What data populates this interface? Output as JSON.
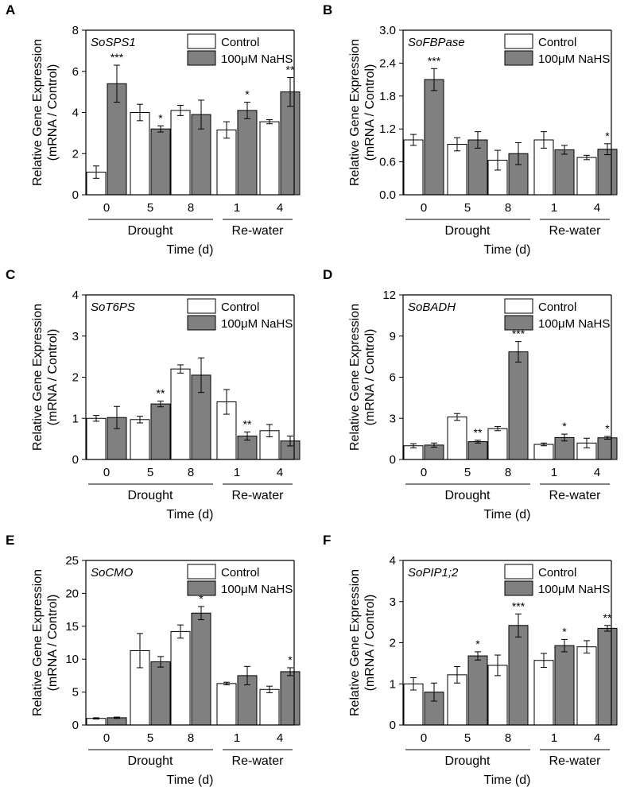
{
  "colors": {
    "control": "#ffffff",
    "nahs": "#808080",
    "axis": "#000000"
  },
  "chart_data": [
    {
      "panel": "A",
      "type": "bar",
      "gene": "SoSPS1",
      "ylabel_line1": "Relative Gene Expression",
      "ylabel_line2": "(mRNA / Control)",
      "xlabel": "Time (d)",
      "categories": [
        "0",
        "5",
        "8",
        "1",
        "4"
      ],
      "groups": [
        "Drought",
        "Re-water"
      ],
      "ylim": [
        0,
        8
      ],
      "yticks": [
        "0",
        "2",
        "4",
        "6",
        "8"
      ],
      "legend": [
        "Control",
        "100μM NaHS"
      ],
      "series": [
        {
          "name": "Control",
          "values": [
            1.1,
            4.0,
            4.1,
            3.15,
            3.55
          ],
          "errors": [
            0.3,
            0.4,
            0.25,
            0.4,
            0.1
          ]
        },
        {
          "name": "100μM NaHS",
          "values": [
            5.4,
            3.2,
            3.9,
            4.1,
            5.0
          ],
          "errors": [
            0.9,
            0.15,
            0.7,
            0.4,
            0.7
          ]
        }
      ],
      "significance": [
        "***",
        "*",
        "",
        "*",
        "**"
      ]
    },
    {
      "panel": "B",
      "type": "bar",
      "gene": "SoFBPase",
      "ylabel_line1": "Relative Gene Expression",
      "ylabel_line2": "(mRNA / Control)",
      "xlabel": "Time (d)",
      "categories": [
        "0",
        "5",
        "8",
        "1",
        "4"
      ],
      "groups": [
        "Drought",
        "Re-water"
      ],
      "ylim": [
        0,
        3
      ],
      "yticks": [
        "0.0",
        "0.6",
        "1.2",
        "1.8",
        "2.4",
        "3.0"
      ],
      "legend": [
        "Control",
        "100μM NaHS"
      ],
      "series": [
        {
          "name": "Control",
          "values": [
            1.0,
            0.92,
            0.63,
            1.0,
            0.68
          ],
          "errors": [
            0.1,
            0.12,
            0.18,
            0.15,
            0.04
          ]
        },
        {
          "name": "100μM NaHS",
          "values": [
            2.1,
            1.0,
            0.75,
            0.82,
            0.83
          ],
          "errors": [
            0.2,
            0.15,
            0.2,
            0.08,
            0.1
          ]
        }
      ],
      "significance": [
        "***",
        "",
        "",
        "",
        "*"
      ]
    },
    {
      "panel": "C",
      "type": "bar",
      "gene": "SoT6PS",
      "ylabel_line1": "Relative Gene Expression",
      "ylabel_line2": "(mRNA / Control)",
      "xlabel": "Time (d)",
      "categories": [
        "0",
        "5",
        "8",
        "1",
        "4"
      ],
      "groups": [
        "Drought",
        "Re-water"
      ],
      "ylim": [
        0,
        4
      ],
      "yticks": [
        "0",
        "1",
        "2",
        "3",
        "4"
      ],
      "legend": [
        "Control",
        "100μM NaHS"
      ],
      "series": [
        {
          "name": "Control",
          "values": [
            1.0,
            0.97,
            2.2,
            1.4,
            0.7
          ],
          "errors": [
            0.07,
            0.08,
            0.1,
            0.3,
            0.15
          ]
        },
        {
          "name": "100μM NaHS",
          "values": [
            1.02,
            1.35,
            2.05,
            0.57,
            0.45
          ],
          "errors": [
            0.27,
            0.07,
            0.42,
            0.1,
            0.12
          ]
        }
      ],
      "significance": [
        "",
        "**",
        "",
        "**",
        ""
      ]
    },
    {
      "panel": "D",
      "type": "bar",
      "gene": "SoBADH",
      "ylabel_line1": "Relative Gene Expression",
      "ylabel_line2": "(mRNA / Control)",
      "xlabel": "Time (d)",
      "categories": [
        "0",
        "5",
        "8",
        "1",
        "4"
      ],
      "groups": [
        "Drought",
        "Re-water"
      ],
      "ylim": [
        0,
        12
      ],
      "yticks": [
        "0",
        "3",
        "6",
        "9",
        "12"
      ],
      "legend": [
        "Control",
        "100μM NaHS"
      ],
      "series": [
        {
          "name": "Control",
          "values": [
            1.0,
            3.1,
            2.25,
            1.1,
            1.2
          ],
          "errors": [
            0.15,
            0.25,
            0.15,
            0.1,
            0.35
          ]
        },
        {
          "name": "100μM NaHS",
          "values": [
            1.05,
            1.3,
            7.85,
            1.6,
            1.58
          ],
          "errors": [
            0.15,
            0.1,
            0.75,
            0.25,
            0.1
          ]
        }
      ],
      "significance": [
        "",
        "**",
        "***",
        "*",
        "*"
      ]
    },
    {
      "panel": "E",
      "type": "bar",
      "gene": "SoCMO",
      "ylabel_line1": "Relative Gene Expression",
      "ylabel_line2": "(mRNA / Control)",
      "xlabel": "Time (d)",
      "categories": [
        "0",
        "5",
        "8",
        "1",
        "4"
      ],
      "groups": [
        "Drought",
        "Re-water"
      ],
      "ylim": [
        0,
        25
      ],
      "yticks": [
        "0",
        "5",
        "10",
        "15",
        "20",
        "25"
      ],
      "legend": [
        "Control",
        "100μM NaHS"
      ],
      "series": [
        {
          "name": "Control",
          "values": [
            1.0,
            11.3,
            14.2,
            6.3,
            5.4
          ],
          "errors": [
            0.1,
            2.6,
            1.0,
            0.2,
            0.5
          ]
        },
        {
          "name": "100μM NaHS",
          "values": [
            1.1,
            9.6,
            17.0,
            7.5,
            8.1
          ],
          "errors": [
            0.1,
            0.8,
            1.0,
            1.4,
            0.6
          ]
        }
      ],
      "significance": [
        "",
        "",
        "*",
        "",
        "*"
      ]
    },
    {
      "panel": "F",
      "type": "bar",
      "gene": "SoPIP1;2",
      "ylabel_line1": "Relative Gene Expression",
      "ylabel_line2": "(mRNA / Control)",
      "xlabel": "Time (d)",
      "categories": [
        "0",
        "5",
        "8",
        "1",
        "4"
      ],
      "groups": [
        "Drought",
        "Re-water"
      ],
      "ylim": [
        0,
        4
      ],
      "yticks": [
        "0",
        "1",
        "2",
        "3",
        "4"
      ],
      "legend": [
        "Control",
        "100μM NaHS"
      ],
      "series": [
        {
          "name": "Control",
          "values": [
            1.0,
            1.22,
            1.45,
            1.57,
            1.9
          ],
          "errors": [
            0.15,
            0.2,
            0.25,
            0.17,
            0.15
          ]
        },
        {
          "name": "100μM NaHS",
          "values": [
            0.8,
            1.68,
            2.42,
            1.93,
            2.35
          ],
          "errors": [
            0.22,
            0.1,
            0.28,
            0.15,
            0.07
          ]
        }
      ],
      "significance": [
        "",
        "*",
        "***",
        "*",
        "**"
      ]
    }
  ]
}
